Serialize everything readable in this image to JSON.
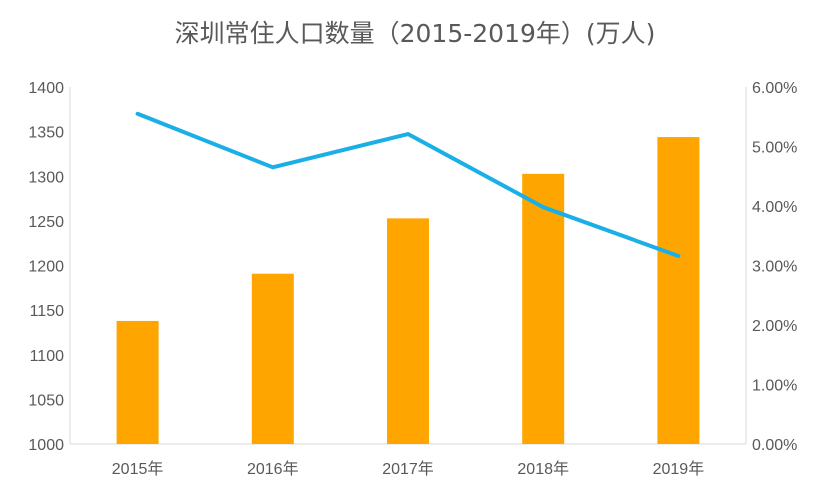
{
  "chart_data": {
    "type": "bar",
    "title": "深圳常住人口数量（2015-2019年）(万人)",
    "categories": [
      "2015年",
      "2016年",
      "2017年",
      "2018年",
      "2019年"
    ],
    "series": [
      {
        "type": "bar",
        "values": [
          1137.9,
          1190.8,
          1252.8,
          1302.7,
          1343.9
        ],
        "color": "#FFA500",
        "axis": "left"
      },
      {
        "type": "line",
        "values": [
          5.55,
          4.65,
          5.21,
          3.98,
          3.16
        ],
        "color": "#1AAFE6",
        "axis": "right"
      }
    ],
    "y_left": {
      "min": 1000,
      "max": 1400,
      "ticks": [
        "1000",
        "1050",
        "1100",
        "1150",
        "1200",
        "1250",
        "1300",
        "1350",
        "1400"
      ]
    },
    "y_right": {
      "min": 0,
      "max": 6,
      "ticks": [
        "0.00%",
        "1.00%",
        "2.00%",
        "3.00%",
        "4.00%",
        "5.00%",
        "6.00%"
      ]
    },
    "grid": false,
    "legend": "none"
  }
}
